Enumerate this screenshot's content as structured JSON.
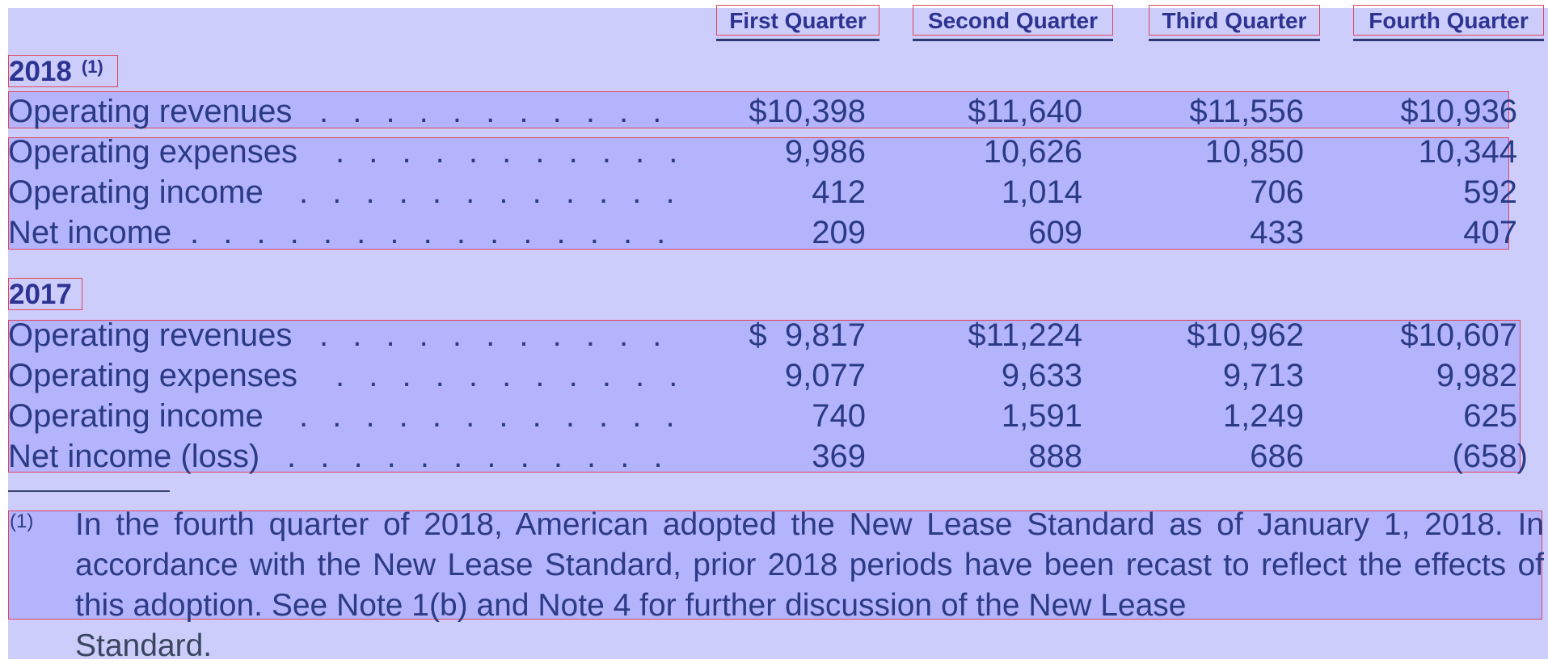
{
  "headers": {
    "q1": "First Quarter",
    "q2": "Second Quarter",
    "q3": "Third Quarter",
    "q4": "Fourth Quarter"
  },
  "year2018": {
    "label": "2018",
    "note": "(1)",
    "rows": [
      {
        "label": "Operating revenues",
        "dots": ". . . . . . . . . . . . . . . . . . . . . .",
        "q1": "$10,398",
        "q2": "$11,640",
        "q3": "$11,556",
        "q4": "$10,936"
      },
      {
        "label": "Operating expenses",
        "dots": ". . . . . . . . . . . . . . . . . . . . .",
        "q1": "9,986",
        "q2": "10,626",
        "q3": "10,850",
        "q4": "10,344"
      },
      {
        "label": "Operating income",
        "dots": ". . . . . . . . . . . . . . . . . . . . . .",
        "q1": "412",
        "q2": "1,014",
        "q3": "706",
        "q4": "592"
      },
      {
        "label": "Net income",
        "dots": ". . . . . . . . . . . . . . . . . . . . . . . . . . .",
        "q1": "209",
        "q2": "609",
        "q3": "433",
        "q4": "407"
      }
    ]
  },
  "year2017": {
    "label": "2017",
    "rows": [
      {
        "label": "Operating revenues",
        "dots": ". . . . . . . . . . . . . . . . . . . . . .",
        "q1": "$  9,817",
        "q2": "$11,224",
        "q3": "$10,962",
        "q4": "$10,607"
      },
      {
        "label": "Operating expenses",
        "dots": ". . . . . . . . . . . . . . . . . . . . .",
        "q1": "9,077",
        "q2": "9,633",
        "q3": "9,713",
        "q4": "9,982"
      },
      {
        "label": "Operating income",
        "dots": ". . . . . . . . . . . . . . . . . . . . . .",
        "q1": "740",
        "q2": "1,591",
        "q3": "1,249",
        "q4": "625"
      },
      {
        "label": "Net income (loss)",
        "dots": ". . . . . . . . . . . . . . . . . . . . . .",
        "q1": "369",
        "q2": "888",
        "q3": "686",
        "q4": "(658)"
      }
    ]
  },
  "footnote": {
    "mark": "(1)",
    "text": "In the fourth quarter of 2018, American adopted the New Lease Standard as of January 1, 2018. In accordance with the New Lease Standard, prior 2018 periods have been recast to reflect the effects of this adoption. See Note 1(b) and Note 4 for further discussion of the New Lease",
    "last_line": "Standard."
  }
}
